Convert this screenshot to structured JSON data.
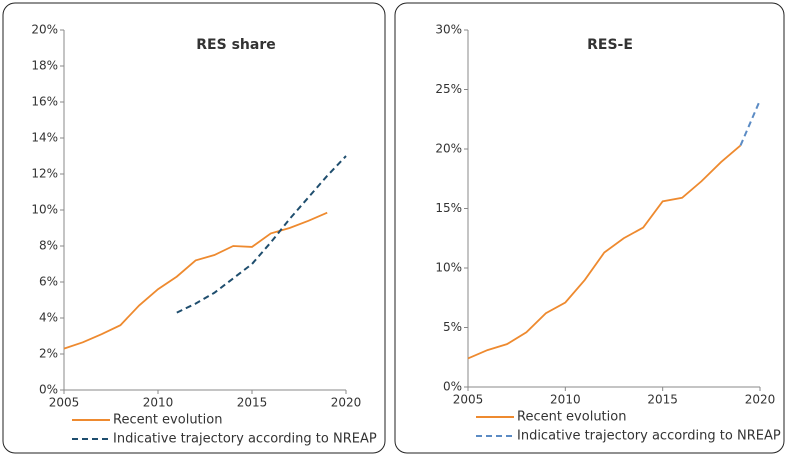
{
  "chart_data": [
    {
      "type": "line",
      "title": "RES share",
      "xlim": [
        2005,
        2020
      ],
      "xticks": [
        2005,
        2010,
        2015,
        2020
      ],
      "ylim": [
        0,
        20
      ],
      "yticks": [
        {
          "value": 0,
          "label": "0%"
        },
        {
          "value": 2,
          "label": "2%"
        },
        {
          "value": 4,
          "label": "4%"
        },
        {
          "value": 6,
          "label": "6%"
        },
        {
          "value": 8,
          "label": "8%"
        },
        {
          "value": 10,
          "label": "10%"
        },
        {
          "value": 12,
          "label": "12%"
        },
        {
          "value": 14,
          "label": "14%"
        },
        {
          "value": 16,
          "label": "16%"
        },
        {
          "value": 18,
          "label": "18%"
        },
        {
          "value": 20,
          "label": "20%"
        }
      ],
      "grid": false,
      "series": [
        {
          "name": "Recent evolution",
          "color": "#ee8a2f",
          "dashed": false,
          "x": [
            2005,
            2006,
            2007,
            2008,
            2009,
            2010,
            2011,
            2012,
            2013,
            2014,
            2015,
            2016,
            2017,
            2018,
            2019
          ],
          "values": [
            2.3,
            2.65,
            3.1,
            3.6,
            4.7,
            5.6,
            6.3,
            7.2,
            7.5,
            8.0,
            7.95,
            8.7,
            9.0,
            9.4,
            9.85
          ]
        },
        {
          "name": "Indicative trajectory according to NREAP",
          "color": "#1f4e6e",
          "dashed": true,
          "x": [
            2011,
            2012,
            2013,
            2014,
            2015,
            2016,
            2017,
            2018,
            2019,
            2020
          ],
          "values": [
            4.3,
            4.8,
            5.4,
            6.2,
            7.0,
            8.2,
            9.5,
            10.7,
            11.9,
            13.0
          ]
        }
      ]
    },
    {
      "type": "line",
      "title": "RES-E",
      "xlim": [
        2005,
        2020
      ],
      "xticks": [
        2005,
        2010,
        2015,
        2020
      ],
      "ylim": [
        0,
        30
      ],
      "yticks": [
        {
          "value": 0,
          "label": "0%"
        },
        {
          "value": 5,
          "label": "5%"
        },
        {
          "value": 10,
          "label": "10%"
        },
        {
          "value": 15,
          "label": "15%"
        },
        {
          "value": 20,
          "label": "20%"
        },
        {
          "value": 25,
          "label": "25%"
        },
        {
          "value": 30,
          "label": "30%"
        }
      ],
      "grid": false,
      "series": [
        {
          "name": "Recent evolution",
          "color": "#ee8a2f",
          "dashed": false,
          "x": [
            2005,
            2006,
            2007,
            2008,
            2009,
            2010,
            2011,
            2012,
            2013,
            2014,
            2015,
            2016,
            2017,
            2018,
            2019
          ],
          "values": [
            2.4,
            3.1,
            3.6,
            4.6,
            6.2,
            7.1,
            9.0,
            11.3,
            12.5,
            13.4,
            15.6,
            15.9,
            17.3,
            18.9,
            20.3
          ]
        },
        {
          "name": "Indicative trajectory according to NREAP",
          "color": "#5b8bc4",
          "dashed": true,
          "x": [
            2019,
            2020
          ],
          "values": [
            20.3,
            24.1
          ]
        }
      ]
    }
  ]
}
